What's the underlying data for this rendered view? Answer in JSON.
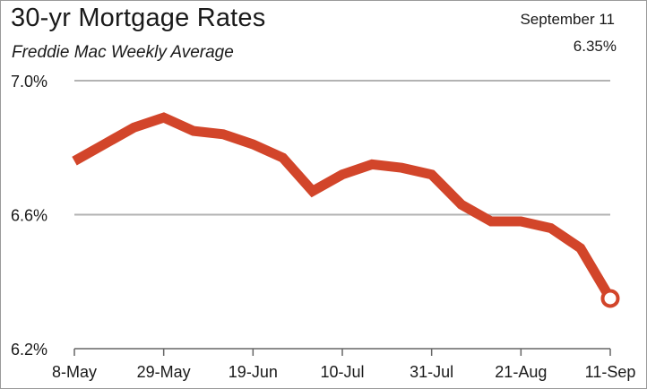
{
  "header": {
    "title": "30-yr Mortgage Rates",
    "subtitle": "Freddie Mac Weekly Average",
    "latest_date": "September 11",
    "latest_value": "6.35%"
  },
  "colors": {
    "line": "#d2452a",
    "grid": "#b3b3b3",
    "axis": "#666666",
    "text": "#1a1a1a"
  },
  "chart_data": {
    "type": "line",
    "title": "30-yr Mortgage Rates",
    "subtitle": "Freddie Mac Weekly Average",
    "xlabel": "",
    "ylabel": "",
    "x": [
      "8-May",
      "15-May",
      "22-May",
      "29-May",
      "5-Jun",
      "12-Jun",
      "19-Jun",
      "26-Jun",
      "3-Jul",
      "10-Jul",
      "17-Jul",
      "24-Jul",
      "31-Jul",
      "7-Aug",
      "14-Aug",
      "21-Aug",
      "28-Aug",
      "4-Sep",
      "11-Sep"
    ],
    "x_tick_labels": [
      "8-May",
      "29-May",
      "19-Jun",
      "10-Jul",
      "31-Jul",
      "21-Aug",
      "11-Sep"
    ],
    "y_ticks": [
      6.2,
      6.6,
      7.0
    ],
    "y_tick_labels": [
      "6.2%",
      "6.6%",
      "7.0%"
    ],
    "ylim": [
      6.2,
      7.0
    ],
    "grid": true,
    "legend": "none",
    "series": [
      {
        "values": [
          6.76,
          6.81,
          6.86,
          6.89,
          6.85,
          6.84,
          6.81,
          6.77,
          6.67,
          6.72,
          6.75,
          6.74,
          6.72,
          6.63,
          6.58,
          6.58,
          6.56,
          6.5,
          6.35
        ]
      }
    ]
  }
}
